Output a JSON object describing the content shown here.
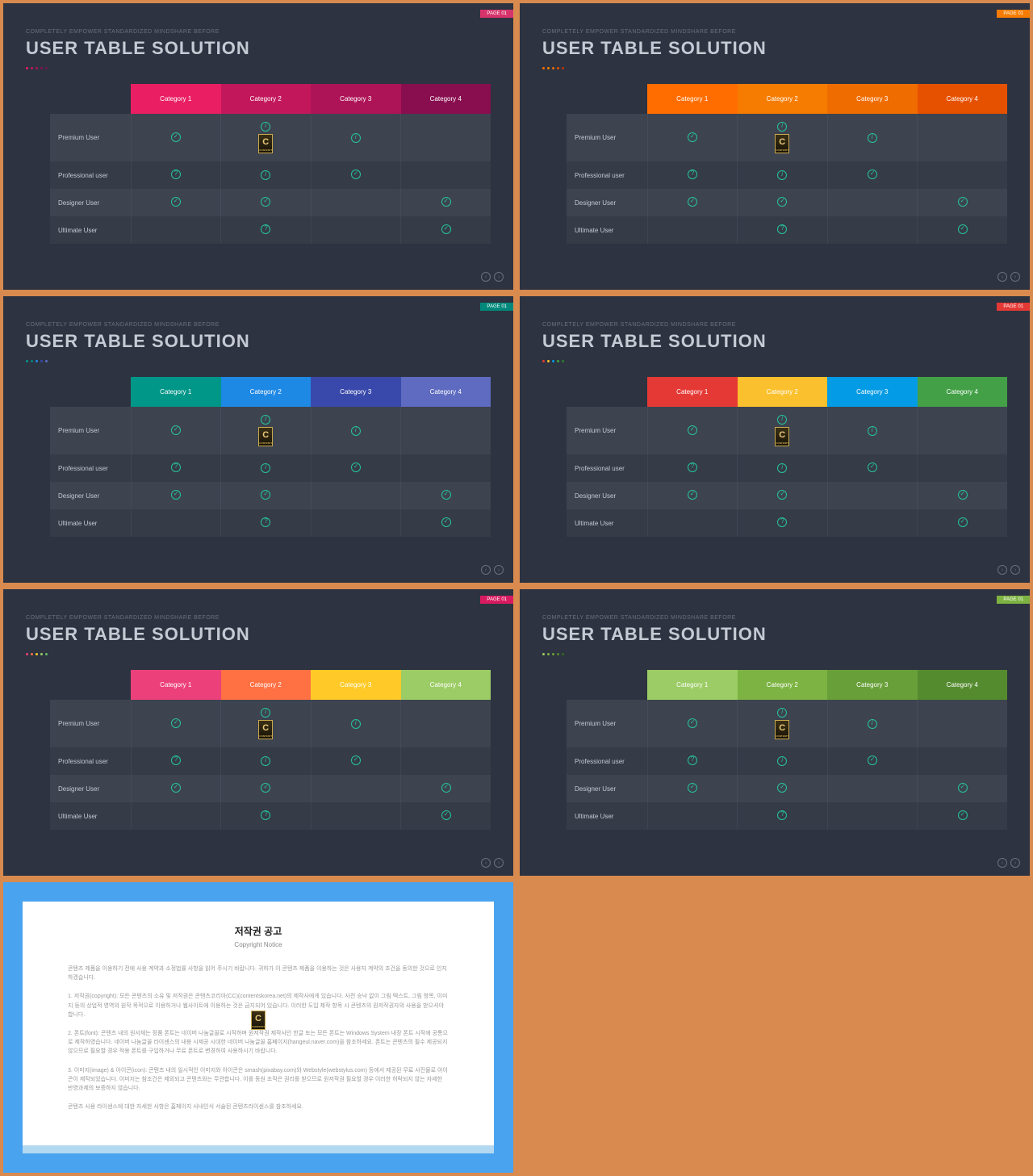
{
  "common": {
    "subtitle": "COMPLETELY EMPOWER STANDARDIZED MINDSHARE BEFORE",
    "title": "USER TABLE SOLUTION",
    "page_tag": "PAGE 01",
    "categories": [
      "Category 1",
      "Category 2",
      "Category 3",
      "Category 4"
    ],
    "rows": [
      "Premium User",
      "Professional user",
      "Designer User",
      "Ultimate User"
    ],
    "cells": [
      [
        "check",
        "info+logo",
        "info",
        ""
      ],
      [
        "qmark",
        "info",
        "check",
        ""
      ],
      [
        "check",
        "check",
        "",
        "check"
      ],
      [
        "",
        "qmark",
        "",
        "check"
      ]
    ],
    "nav_prev": "‹",
    "nav_next": "›",
    "logo_letter": "C",
    "logo_sub": "CONTENTS"
  },
  "slides": [
    {
      "tag_color": "#d6336c",
      "header_colors": [
        "#e91e63",
        "#c2185b",
        "#ad1457",
        "#880e4f"
      ],
      "dot_colors": [
        "#e91e63",
        "#c2185b",
        "#ad1457",
        "#880e4f",
        "#6a1b4d"
      ]
    },
    {
      "tag_color": "#f57c00",
      "header_colors": [
        "#ff6d00",
        "#f57c00",
        "#ef6c00",
        "#e65100"
      ],
      "dot_colors": [
        "#ff6d00",
        "#f57c00",
        "#ef6c00",
        "#e65100",
        "#bf360c"
      ]
    },
    {
      "tag_color": "#00897b",
      "header_colors": [
        "#009688",
        "#1e88e5",
        "#3949ab",
        "#5e6bc0"
      ],
      "dot_colors": [
        "#009688",
        "#00897b",
        "#1e88e5",
        "#3949ab",
        "#5e6bc0"
      ]
    },
    {
      "tag_color": "#e53935",
      "header_colors": [
        "#e53935",
        "#fbc02d",
        "#039be5",
        "#43a047"
      ],
      "dot_colors": [
        "#e53935",
        "#fbc02d",
        "#039be5",
        "#43a047",
        "#2e7d32"
      ]
    },
    {
      "tag_color": "#d81b60",
      "header_colors": [
        "#ec407a",
        "#ff7043",
        "#ffca28",
        "#9ccc65"
      ],
      "dot_colors": [
        "#ec407a",
        "#ff7043",
        "#ffca28",
        "#9ccc65",
        "#66bb6a"
      ]
    },
    {
      "tag_color": "#7cb342",
      "header_colors": [
        "#9ccc65",
        "#7cb342",
        "#689f38",
        "#558b2f"
      ],
      "dot_colors": [
        "#9ccc65",
        "#7cb342",
        "#689f38",
        "#558b2f",
        "#33691e"
      ]
    }
  ],
  "copyright": {
    "title": "저작권 공고",
    "subtitle": "Copyright Notice",
    "p1": "콘텐츠 제품을 이용하기 전에 사용 계약과 소정법률 사항을 읽어 주시기 바랍니다. 귀하가 이 콘텐츠 제품을 이용하는 것은 사용자 계약의 조건을 동의한 것으로 인지하겠습니다.",
    "p2": "1. 저작권(copyright): 모든 콘텐츠의 소유 및 저작권은 콘텐츠코리아(CC)(contentskorea.net)의 제작사에게 있습니다. 사전 승낙 없이 그림 텍스트, 그림 항목, 이미지 등의 상업적 영역의 원작 목적으로 이용하거나 웹사이트에 이용하는 것은 금지되어 있습니다. 이러한 도입 제작 항목 시 콘텐츠의 원저작권자의 사용을 받으셔야 합니다.",
    "p3": "2. 폰트(font): 콘텐츠 내의 원서체는 정품 폰트는 네이버 나눔글꼴로 시작하며 원저작권 제작사인 한글 또는 모든 폰트는 Windows System 내장 폰트 시작에 공통으로 제작하였습니다. 네이버 나눔글꼴 라이센스의 내용 시제공 시대한 네이버 나눔글꼴 홈페이지(hangeul.naver.com)을 참조하세요. 폰트는 콘텐츠의 필수 제공되지 않으므로 필요할 경우 적용 폰트를 구입하거나 무료 폰트로 변경하여 사용하시기 바랍니다.",
    "p4": "3. 이미지(image) & 아이콘(icon): 콘텐츠 내의 일시적인 이미지와 아이콘은 smash(pixabay.com)와 Webstyle(webstylus.com) 등에서 제공된 무료 사진물로 아이콘이 제작되었습니다. 이미지는 참조건은 제외되고 콘텐츠와는 무관합니다. 이를 동원 조직은 권리를 받으므로 원저작권 필요할 경우 이러한 허락되지 않는 자세한 반영과제의 보증하지 않습니다.",
    "p5": "콘텐츠 사용 라이센스에 대한 자세한 사항은 홈페이지 사내인식 서술된 콘텐츠라이센스를 참조하세요."
  }
}
